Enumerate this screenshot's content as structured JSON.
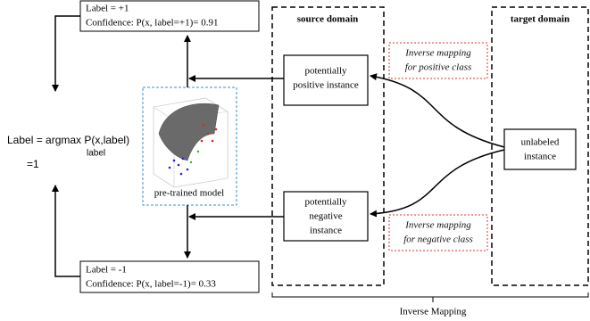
{
  "top_output": {
    "label": "Label = +1",
    "confidence": "Confidence: P(x, label=+1)= 0.91"
  },
  "bottom_output": {
    "label": "Label = -1",
    "confidence": "Confidence: P(x, label=-1)= 0.33"
  },
  "decision": {
    "formula": "Label = argmax P(x,label)",
    "subscript": "label",
    "result": "=1"
  },
  "model": {
    "label": "pre-trained model"
  },
  "source_domain": {
    "title": "source domain",
    "positive_instance": [
      "potentially",
      "positive instance"
    ],
    "negative_instance": [
      "potentially",
      "negative",
      "instance"
    ]
  },
  "target_domain": {
    "title": "target domain",
    "unlabeled_instance": [
      "unlabeled",
      "instance"
    ]
  },
  "mappings": {
    "positive": [
      "Inverse mapping",
      "for positive class"
    ],
    "negative": [
      "Inverse mapping",
      "for negative class"
    ]
  },
  "footer": "Inverse Mapping"
}
